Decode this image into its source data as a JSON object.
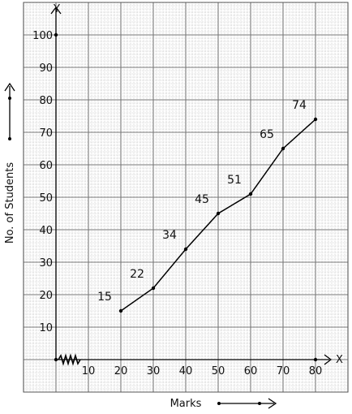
{
  "chart_data": {
    "type": "line",
    "xlabel": "Marks",
    "ylabel": "No. of Students",
    "x_axis_letter": "X",
    "y_axis_letter": "Y",
    "xlim": [
      0,
      80
    ],
    "ylim": [
      0,
      100
    ],
    "x_ticks": [
      "10",
      "20",
      "30",
      "40",
      "50",
      "60",
      "70",
      "80"
    ],
    "y_ticks": [
      "10",
      "20",
      "30",
      "40",
      "50",
      "60",
      "70",
      "80",
      "90",
      "100"
    ],
    "x": [
      20,
      30,
      40,
      50,
      60,
      70,
      80
    ],
    "values": [
      15,
      22,
      34,
      45,
      51,
      65,
      74
    ],
    "data_labels": [
      "15",
      "22",
      "34",
      "45",
      "51",
      "65",
      "74"
    ],
    "grid": true,
    "colors": {
      "background": "#ffffff",
      "grid_minor": "#b8b8b8",
      "grid_major": "#777777",
      "line": "#000000"
    }
  }
}
